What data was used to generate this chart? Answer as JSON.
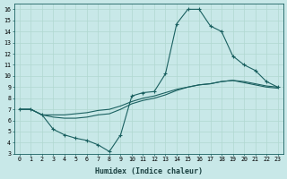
{
  "xlabel": "Humidex (Indice chaleur)",
  "background_color": "#c8e8e8",
  "grid_color": "#b0d8d0",
  "line_color": "#1a6060",
  "xlim": [
    -0.5,
    23.5
  ],
  "ylim": [
    3,
    16.5
  ],
  "xticks": [
    0,
    1,
    2,
    3,
    4,
    5,
    6,
    7,
    8,
    9,
    10,
    11,
    12,
    13,
    14,
    15,
    16,
    17,
    18,
    19,
    20,
    21,
    22,
    23
  ],
  "yticks": [
    3,
    4,
    5,
    6,
    7,
    8,
    9,
    10,
    11,
    12,
    13,
    14,
    15,
    16
  ],
  "line1_x": [
    0,
    1,
    2,
    3,
    4,
    5,
    6,
    7,
    8,
    9,
    10,
    11,
    12,
    13,
    14,
    15,
    16,
    17,
    18,
    19,
    20,
    21,
    22,
    23
  ],
  "line1_y": [
    7.0,
    7.0,
    6.5,
    5.2,
    4.7,
    4.4,
    4.2,
    3.8,
    3.2,
    4.7,
    8.2,
    8.5,
    8.6,
    10.2,
    14.7,
    16.0,
    16.0,
    14.5,
    14.0,
    11.8,
    11.0,
    10.5,
    9.5,
    9.0
  ],
  "line2_x": [
    0,
    1,
    2,
    3,
    4,
    5,
    6,
    7,
    8,
    9,
    10,
    11,
    12,
    13,
    14,
    15,
    16,
    17,
    18,
    19,
    20,
    21,
    22,
    23
  ],
  "line2_y": [
    7.0,
    7.0,
    6.5,
    6.3,
    6.2,
    6.2,
    6.3,
    6.5,
    6.6,
    7.0,
    7.5,
    7.8,
    8.0,
    8.3,
    8.7,
    9.0,
    9.2,
    9.3,
    9.5,
    9.6,
    9.4,
    9.2,
    9.0,
    8.9
  ],
  "line3_x": [
    0,
    1,
    2,
    3,
    4,
    5,
    6,
    7,
    8,
    9,
    10,
    11,
    12,
    13,
    14,
    15,
    16,
    17,
    18,
    19,
    20,
    21,
    22,
    23
  ],
  "line3_y": [
    7.0,
    7.0,
    6.5,
    6.5,
    6.5,
    6.6,
    6.7,
    6.9,
    7.0,
    7.3,
    7.7,
    8.0,
    8.2,
    8.5,
    8.8,
    9.0,
    9.2,
    9.3,
    9.5,
    9.6,
    9.5,
    9.3,
    9.1,
    9.0
  ]
}
